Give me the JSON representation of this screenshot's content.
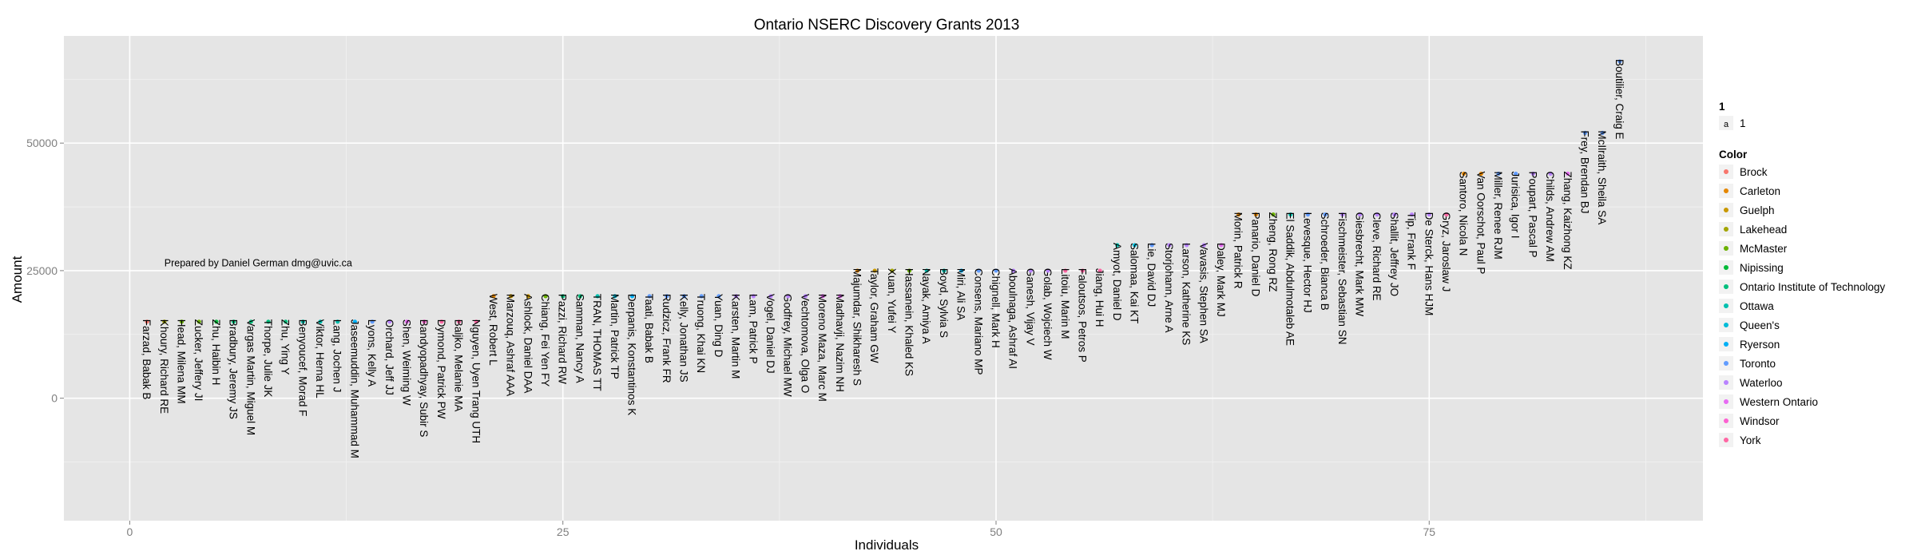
{
  "chart_data": {
    "type": "scatter",
    "title": "Ontario NSERC Discovery Grants 2013",
    "xlabel": "Individuals",
    "ylabel": "Amount",
    "xlim": [
      -3.8,
      90.8
    ],
    "ylim": [
      -24000,
      71000
    ],
    "x_ticks": [
      0,
      25,
      50,
      75
    ],
    "y_ticks": [
      0,
      25000,
      50000
    ],
    "y_tick_labels": [
      "0",
      "25000",
      "50000"
    ],
    "annotation": {
      "text": "Prepared by Daniel German dmg@uvic.ca",
      "x": 0.5,
      "y": 26500
    },
    "grid": true,
    "legend": {
      "placement": "right",
      "size_title": "1",
      "size_key_glyph": "a",
      "size_label": "1",
      "color_title": "Color",
      "entries": [
        {
          "name": "Brock",
          "color": "#F8766D"
        },
        {
          "name": "Carleton",
          "color": "#E58700"
        },
        {
          "name": "Guelph",
          "color": "#C99800"
        },
        {
          "name": "Lakehead",
          "color": "#A3A500"
        },
        {
          "name": "McMaster",
          "color": "#6BB100"
        },
        {
          "name": "Nipissing",
          "color": "#00BA38"
        },
        {
          "name": "Ontario Institute of Technology",
          "color": "#00BF7D"
        },
        {
          "name": "Ottawa",
          "color": "#00C0AF"
        },
        {
          "name": "Queen's",
          "color": "#00BCD8"
        },
        {
          "name": "Ryerson",
          "color": "#00B0F6"
        },
        {
          "name": "Toronto",
          "color": "#619CFF"
        },
        {
          "name": "Waterloo",
          "color": "#B983FF"
        },
        {
          "name": "Western Ontario",
          "color": "#E76BF3"
        },
        {
          "name": "Windsor",
          "color": "#FD61D1"
        },
        {
          "name": "York",
          "color": "#FF67A4"
        }
      ]
    },
    "points": [
      {
        "x": 1,
        "y": 15000,
        "name": "Farzad, Babak B",
        "group": "Brock"
      },
      {
        "x": 2,
        "y": 15000,
        "name": "Khoury, Richard RE",
        "group": "Lakehead"
      },
      {
        "x": 3,
        "y": 15000,
        "name": "Head, Milena MM",
        "group": "McMaster"
      },
      {
        "x": 4,
        "y": 15000,
        "name": "Zucker, Jeffery JI",
        "group": "McMaster"
      },
      {
        "x": 5,
        "y": 15000,
        "name": "Zhu, Haibin H",
        "group": "Nipissing"
      },
      {
        "x": 6,
        "y": 15000,
        "name": "Bradbury, Jeremy JS",
        "group": "Ontario Institute of Technology"
      },
      {
        "x": 7,
        "y": 15000,
        "name": "Vargas Martin, Miguel M",
        "group": "Ontario Institute of Technology"
      },
      {
        "x": 8,
        "y": 15000,
        "name": "Thorpe, Julie JK",
        "group": "Ontario Institute of Technology"
      },
      {
        "x": 9,
        "y": 15000,
        "name": "Zhu, Ying Y",
        "group": "Ontario Institute of Technology"
      },
      {
        "x": 10,
        "y": 15000,
        "name": "Benyoucef, Morad F",
        "group": "Ottawa"
      },
      {
        "x": 11,
        "y": 15000,
        "name": "Viktor, Herna HL",
        "group": "Ottawa"
      },
      {
        "x": 12,
        "y": 15000,
        "name": "Lang, Jochen J",
        "group": "Ottawa"
      },
      {
        "x": 13,
        "y": 15000,
        "name": "Jaseemuddin, Muhammad M",
        "group": "Ryerson"
      },
      {
        "x": 14,
        "y": 15000,
        "name": "Lyons, Kelly A",
        "group": "Toronto"
      },
      {
        "x": 15,
        "y": 15000,
        "name": "Orchard, Jeff JJ",
        "group": "Waterloo"
      },
      {
        "x": 16,
        "y": 15000,
        "name": "Shen, Weiming W",
        "group": "Western Ontario"
      },
      {
        "x": 17,
        "y": 15000,
        "name": "Bandyopadhyay, Subir S",
        "group": "Windsor"
      },
      {
        "x": 18,
        "y": 15000,
        "name": "Dymond, Patrick PW",
        "group": "York"
      },
      {
        "x": 19,
        "y": 15000,
        "name": "Baljko, Melanie MA",
        "group": "York"
      },
      {
        "x": 20,
        "y": 15000,
        "name": "Nguyen, Uyen Trang UTH",
        "group": "York"
      },
      {
        "x": 21,
        "y": 20000,
        "name": "West, Robert L",
        "group": "Carleton"
      },
      {
        "x": 22,
        "y": 20000,
        "name": "Marzouq, Ashraf AAA",
        "group": "Guelph"
      },
      {
        "x": 23,
        "y": 20000,
        "name": "Ashlock, Daniel DAA",
        "group": "Guelph"
      },
      {
        "x": 24,
        "y": 20000,
        "name": "Chiang, Fei Yen FY",
        "group": "McMaster"
      },
      {
        "x": 25,
        "y": 20000,
        "name": "Pazzi, Richard RW",
        "group": "Ontario Institute of Technology"
      },
      {
        "x": 26,
        "y": 20000,
        "name": "Samman, Nancy A",
        "group": "Ontario Institute of Technology"
      },
      {
        "x": 27,
        "y": 20000,
        "name": "TRAN, THOMAS TT",
        "group": "Ottawa"
      },
      {
        "x": 28,
        "y": 20000,
        "name": "Martin, Patrick TP",
        "group": "Queen's"
      },
      {
        "x": 29,
        "y": 20000,
        "name": "Derpanis, Konstantinos K",
        "group": "Ryerson"
      },
      {
        "x": 30,
        "y": 20000,
        "name": "Taati, Babak B",
        "group": "Toronto"
      },
      {
        "x": 31,
        "y": 20000,
        "name": "Rudzicz, Frank FR",
        "group": "Toronto"
      },
      {
        "x": 32,
        "y": 20000,
        "name": "Kelly, Jonathan JS",
        "group": "Toronto"
      },
      {
        "x": 33,
        "y": 20000,
        "name": "Truong, Khai KN",
        "group": "Toronto"
      },
      {
        "x": 34,
        "y": 20000,
        "name": "Yuan, Ding D",
        "group": "Toronto"
      },
      {
        "x": 35,
        "y": 20000,
        "name": "Karsten, Martin M",
        "group": "Waterloo"
      },
      {
        "x": 36,
        "y": 20000,
        "name": "Lam, Patrick P",
        "group": "Waterloo"
      },
      {
        "x": 37,
        "y": 20000,
        "name": "Vogel, Daniel DJ",
        "group": "Waterloo"
      },
      {
        "x": 38,
        "y": 20000,
        "name": "Godfrey, Michael MW",
        "group": "Waterloo"
      },
      {
        "x": 39,
        "y": 20000,
        "name": "Vechtomova, Olga O",
        "group": "Waterloo"
      },
      {
        "x": 40,
        "y": 20000,
        "name": "Moreno Maza, Marc M",
        "group": "Western Ontario"
      },
      {
        "x": 41,
        "y": 20000,
        "name": "Madhavji, Nazim NH",
        "group": "Western Ontario"
      },
      {
        "x": 42,
        "y": 25000,
        "name": "Majumdar, Shikharesh S",
        "group": "Carleton"
      },
      {
        "x": 43,
        "y": 25000,
        "name": "Taylor, Graham GW",
        "group": "Guelph"
      },
      {
        "x": 44,
        "y": 25000,
        "name": "Xuan, Yufei Y",
        "group": "Lakehead"
      },
      {
        "x": 45,
        "y": 25000,
        "name": "Hassanein, Khaled KS",
        "group": "McMaster"
      },
      {
        "x": 46,
        "y": 25000,
        "name": "Nayak, Amiya A",
        "group": "Ottawa"
      },
      {
        "x": 47,
        "y": 25000,
        "name": "Boyd, Sylvia S",
        "group": "Ottawa"
      },
      {
        "x": 48,
        "y": 25000,
        "name": "Miri, Ali SA",
        "group": "Ryerson"
      },
      {
        "x": 49,
        "y": 25000,
        "name": "Consens, Mariano MP",
        "group": "Toronto"
      },
      {
        "x": 50,
        "y": 25000,
        "name": "Chignell, Mark H",
        "group": "Toronto"
      },
      {
        "x": 51,
        "y": 25000,
        "name": "Aboulnaga, Ashraf AI",
        "group": "Waterloo"
      },
      {
        "x": 52,
        "y": 25000,
        "name": "Ganesh, Vijay V",
        "group": "Waterloo"
      },
      {
        "x": 53,
        "y": 25000,
        "name": "Golab, Wojciech W",
        "group": "Waterloo"
      },
      {
        "x": 54,
        "y": 25000,
        "name": "Litoiu, Marin M",
        "group": "York"
      },
      {
        "x": 55,
        "y": 25000,
        "name": "Faloutsos, Petros P",
        "group": "York"
      },
      {
        "x": 56,
        "y": 25000,
        "name": "Jiang, Hui H",
        "group": "York"
      },
      {
        "x": 57,
        "y": 30000,
        "name": "Amyot, Daniel D",
        "group": "Ottawa"
      },
      {
        "x": 58,
        "y": 30000,
        "name": "Salomaa, Kai KT",
        "group": "Queen's"
      },
      {
        "x": 59,
        "y": 30000,
        "name": "Lie, David DJ",
        "group": "Toronto"
      },
      {
        "x": 60,
        "y": 30000,
        "name": "Storjohann, Arne A",
        "group": "Waterloo"
      },
      {
        "x": 61,
        "y": 30000,
        "name": "Larson, Katherine KS",
        "group": "Waterloo"
      },
      {
        "x": 62,
        "y": 30000,
        "name": "Vavasis, Stephen SA",
        "group": "Waterloo"
      },
      {
        "x": 63,
        "y": 30000,
        "name": "Daley, Mark MJ",
        "group": "Western Ontario"
      },
      {
        "x": 64,
        "y": 36000,
        "name": "Morin, Patrick R",
        "group": "Carleton"
      },
      {
        "x": 65,
        "y": 36000,
        "name": "Panario, Daniel D",
        "group": "Carleton"
      },
      {
        "x": 66,
        "y": 36000,
        "name": "Zheng, Rong RZ",
        "group": "McMaster"
      },
      {
        "x": 67,
        "y": 36000,
        "name": "El Saddik, Abdulmotaleb AE",
        "group": "Ottawa"
      },
      {
        "x": 68,
        "y": 36000,
        "name": "Levesque, Hector HJ",
        "group": "Toronto"
      },
      {
        "x": 69,
        "y": 36000,
        "name": "Schroeder, Bianca B",
        "group": "Toronto"
      },
      {
        "x": 70,
        "y": 36000,
        "name": "Fischmeister, Sebastian SN",
        "group": "Waterloo"
      },
      {
        "x": 71,
        "y": 36000,
        "name": "Giesbrecht, Mark MW",
        "group": "Waterloo"
      },
      {
        "x": 72,
        "y": 36000,
        "name": "Cleve, Richard RE",
        "group": "Waterloo"
      },
      {
        "x": 73,
        "y": 36000,
        "name": "Shallit, Jeffrey JO",
        "group": "Waterloo"
      },
      {
        "x": 74,
        "y": 36000,
        "name": "Tip, Frank F",
        "group": "Waterloo"
      },
      {
        "x": 75,
        "y": 36000,
        "name": "De Sterck, Hans HJM",
        "group": "Waterloo"
      },
      {
        "x": 76,
        "y": 36000,
        "name": "Gryz, Jaroslaw J",
        "group": "York"
      },
      {
        "x": 77,
        "y": 44000,
        "name": "Santoro, Nicola N",
        "group": "Carleton"
      },
      {
        "x": 78,
        "y": 44000,
        "name": "Van Oorschot, Paul P",
        "group": "Carleton"
      },
      {
        "x": 79,
        "y": 44000,
        "name": "Miller, Renee RJM",
        "group": "Toronto"
      },
      {
        "x": 80,
        "y": 44000,
        "name": "Jurisica, Igor I",
        "group": "Toronto"
      },
      {
        "x": 81,
        "y": 44000,
        "name": "Poupart, Pascal P",
        "group": "Waterloo"
      },
      {
        "x": 82,
        "y": 44000,
        "name": "Childs, Andrew AM",
        "group": "Waterloo"
      },
      {
        "x": 83,
        "y": 44000,
        "name": "Zhang, Kaizhong KZ",
        "group": "Western Ontario"
      },
      {
        "x": 84,
        "y": 52000,
        "name": "Frey, Brendan BJ",
        "group": "Toronto"
      },
      {
        "x": 85,
        "y": 52000,
        "name": "McIlraith, Sheila SA",
        "group": "Toronto"
      },
      {
        "x": 86,
        "y": 66000,
        "name": "Boutilier, Craig E",
        "group": "Toronto"
      }
    ]
  }
}
